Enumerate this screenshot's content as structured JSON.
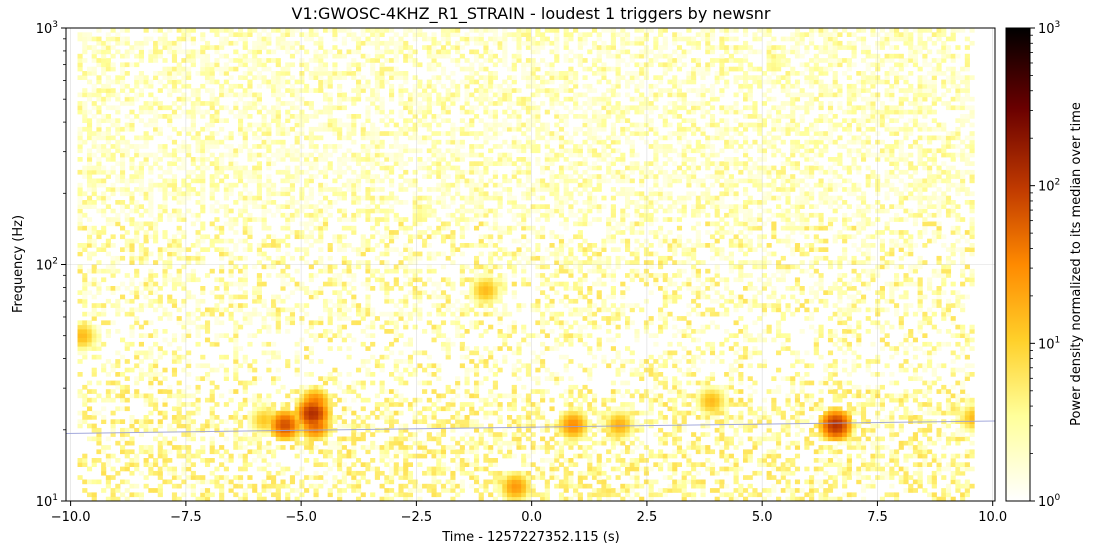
{
  "chart_data": {
    "type": "heatmap",
    "title": "V1:GWOSC-4KHZ_R1_STRAIN - loudest 1 triggers by newsnr",
    "xlabel": "Time - 1257227352.115 (s)",
    "ylabel": "Frequency (Hz)",
    "colorbar_label": "Power density normalized to its median over time",
    "xlim": [
      -10.1,
      10.05
    ],
    "ylim": [
      10,
      1000
    ],
    "yscale": "log",
    "colorbar_scale": "log",
    "colorbar_lim": [
      1,
      1000
    ],
    "colormap": "afmhot_r",
    "grid": true,
    "x_ticks": [
      {
        "value": -10.0,
        "label": "−10.0"
      },
      {
        "value": -7.5,
        "label": "−7.5"
      },
      {
        "value": -5.0,
        "label": "−5.0"
      },
      {
        "value": -2.5,
        "label": "−2.5"
      },
      {
        "value": 0.0,
        "label": "0.0"
      },
      {
        "value": 2.5,
        "label": "2.5"
      },
      {
        "value": 5.0,
        "label": "5.0"
      },
      {
        "value": 7.5,
        "label": "7.5"
      },
      {
        "value": 10.0,
        "label": "10.0"
      }
    ],
    "y_ticks": [
      {
        "value": 10,
        "base": "10",
        "exp": "1"
      },
      {
        "value": 100,
        "base": "10",
        "exp": "2"
      },
      {
        "value": 1000,
        "base": "10",
        "exp": "3"
      }
    ],
    "colorbar_ticks": [
      {
        "value": 1,
        "base": "10",
        "exp": "0"
      },
      {
        "value": 10,
        "base": "10",
        "exp": "1"
      },
      {
        "value": 100,
        "base": "10",
        "exp": "2"
      },
      {
        "value": 1000,
        "base": "10",
        "exp": "3"
      }
    ],
    "data_extent_time": [
      -9.85,
      9.6
    ],
    "track": {
      "color": "#9aa0d8",
      "points": [
        {
          "t": -10.1,
          "f": 19.3
        },
        {
          "t": 10.05,
          "f": 21.8
        }
      ]
    },
    "hotspots": [
      {
        "t": -5.35,
        "f": 21.0,
        "power": 70
      },
      {
        "t": -4.75,
        "f": 23.5,
        "power": 120
      },
      {
        "t": -4.7,
        "f": 26.0,
        "power": 40
      },
      {
        "t": -4.7,
        "f": 21.0,
        "power": 50
      },
      {
        "t": -0.35,
        "f": 11.5,
        "power": 25
      },
      {
        "t": 6.6,
        "f": 21.0,
        "power": 110
      },
      {
        "t": 0.9,
        "f": 21.0,
        "power": 30
      },
      {
        "t": 1.9,
        "f": 21.0,
        "power": 18
      },
      {
        "t": 3.9,
        "f": 26.5,
        "power": 15
      },
      {
        "t": -9.75,
        "f": 50.0,
        "power": 15
      },
      {
        "t": -1.0,
        "f": 78.0,
        "power": 15
      },
      {
        "t": -5.8,
        "f": 22.0,
        "power": 12
      },
      {
        "t": 9.6,
        "f": 22.5,
        "power": 15
      }
    ]
  }
}
